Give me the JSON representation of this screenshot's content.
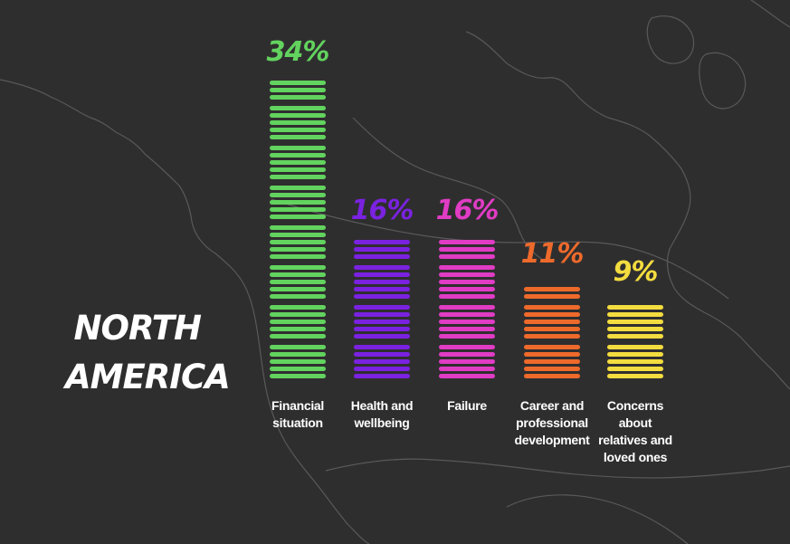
{
  "region": {
    "line1": "NORTH",
    "line2": "AMERICA"
  },
  "chart_data": {
    "type": "bar",
    "categories": [
      "Financial situation",
      "Health and wellbeing",
      "Failure",
      "Career and professional development",
      "Concerns about relatives and loved ones"
    ],
    "values": [
      34,
      16,
      16,
      11,
      9
    ],
    "value_labels": [
      "34%",
      "16%",
      "16%",
      "11%",
      "9%"
    ],
    "colors": [
      "#62d35e",
      "#7a22e0",
      "#e03cc4",
      "#ee6a2b",
      "#f3dc3f"
    ],
    "label_lines": [
      [
        "Financial",
        "situation"
      ],
      [
        "Health and",
        "wellbeing"
      ],
      [
        "Failure"
      ],
      [
        "Career and",
        "professional",
        "development"
      ],
      [
        "Concerns",
        "about",
        "relatives and",
        "loved ones"
      ]
    ],
    "title": "",
    "xlabel": "",
    "ylabel": "",
    "grid": false,
    "legend": "none"
  },
  "background": {
    "color": "#2f2e2f",
    "map_line_color": "#5a595a"
  }
}
